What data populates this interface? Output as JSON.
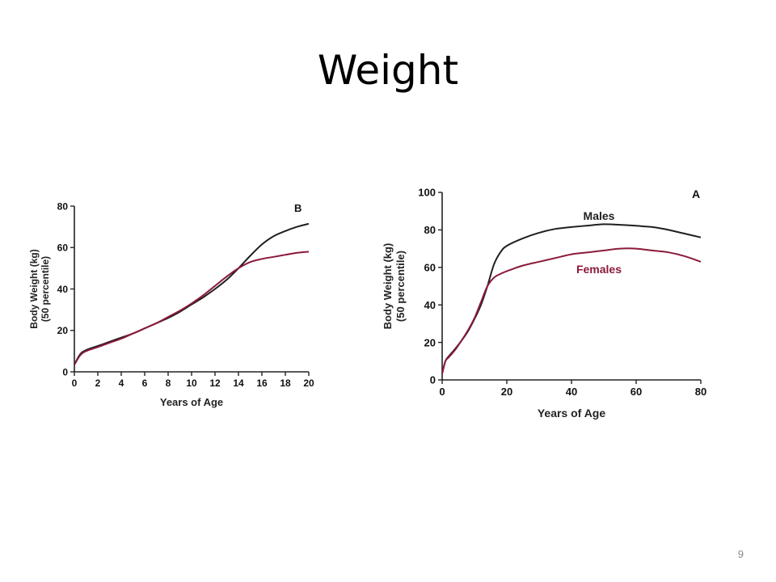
{
  "slide": {
    "title": "Weight",
    "page_number": "9"
  },
  "colors": {
    "males": "#1f1f1f",
    "females": "#8b1a3a",
    "axis": "#222222"
  },
  "chart_data": [
    {
      "panel": "B",
      "type": "line",
      "title": "",
      "xlabel": "Years of Age",
      "ylabel": [
        "Body Weight (kg)",
        "(50 percentile)"
      ],
      "xlim": [
        0,
        20
      ],
      "ylim": [
        0,
        80
      ],
      "xticks": [
        0,
        2,
        4,
        6,
        8,
        10,
        12,
        14,
        16,
        18,
        20
      ],
      "yticks": [
        0,
        20,
        40,
        60,
        80
      ],
      "series": [
        {
          "key": "males",
          "x": [
            0,
            0.5,
            1,
            2,
            3,
            4,
            5,
            6,
            7,
            8,
            9,
            10,
            11,
            12,
            13,
            14,
            15,
            16,
            17,
            18,
            19,
            20
          ],
          "y": [
            3.5,
            8.5,
            10.5,
            12.5,
            14.5,
            16.5,
            18.5,
            21,
            23.5,
            26,
            29,
            32.5,
            36,
            40,
            44.5,
            50,
            56,
            61.5,
            65.5,
            68,
            70,
            71.5
          ]
        },
        {
          "key": "females",
          "x": [
            0,
            0.5,
            1,
            2,
            3,
            4,
            5,
            6,
            7,
            8,
            9,
            10,
            11,
            12,
            13,
            14,
            15,
            16,
            17,
            18,
            19,
            20
          ],
          "y": [
            3.4,
            8,
            10,
            12,
            14,
            16,
            18.5,
            21,
            23.5,
            26.5,
            29.5,
            33,
            37,
            41.5,
            46,
            50,
            53,
            54.5,
            55.5,
            56.5,
            57.5,
            58
          ]
        }
      ]
    },
    {
      "panel": "A",
      "type": "line",
      "title": "",
      "xlabel": "Years of Age",
      "ylabel": [
        "Body Weight (kg)",
        "(50 percentile)"
      ],
      "xlim": [
        0,
        80
      ],
      "ylim": [
        0,
        100
      ],
      "xticks": [
        0,
        20,
        40,
        60,
        80
      ],
      "yticks": [
        0,
        20,
        40,
        60,
        80,
        100
      ],
      "series": [
        {
          "key": "males",
          "name": "Males",
          "x": [
            0,
            1,
            2,
            4,
            6,
            8,
            10,
            12,
            14,
            16,
            18,
            20,
            25,
            30,
            35,
            40,
            45,
            50,
            55,
            60,
            65,
            70,
            75,
            80
          ],
          "y": [
            3.5,
            10,
            12.5,
            16.5,
            21,
            26,
            32.5,
            40,
            50,
            61.5,
            68,
            71.5,
            75.5,
            78.5,
            80.5,
            81.5,
            82.3,
            83,
            82.7,
            82.2,
            81.5,
            80,
            78,
            76
          ]
        },
        {
          "key": "females",
          "name": "Females",
          "x": [
            0,
            1,
            2,
            4,
            6,
            8,
            10,
            12,
            14,
            16,
            18,
            20,
            25,
            30,
            35,
            40,
            45,
            50,
            55,
            60,
            65,
            70,
            75,
            80
          ],
          "y": [
            3.4,
            10,
            12,
            16,
            21,
            26.5,
            33,
            41.5,
            50,
            54.5,
            56.5,
            58,
            61,
            63,
            65,
            67,
            68,
            69,
            70,
            70,
            69,
            68,
            66,
            63
          ]
        }
      ]
    }
  ]
}
